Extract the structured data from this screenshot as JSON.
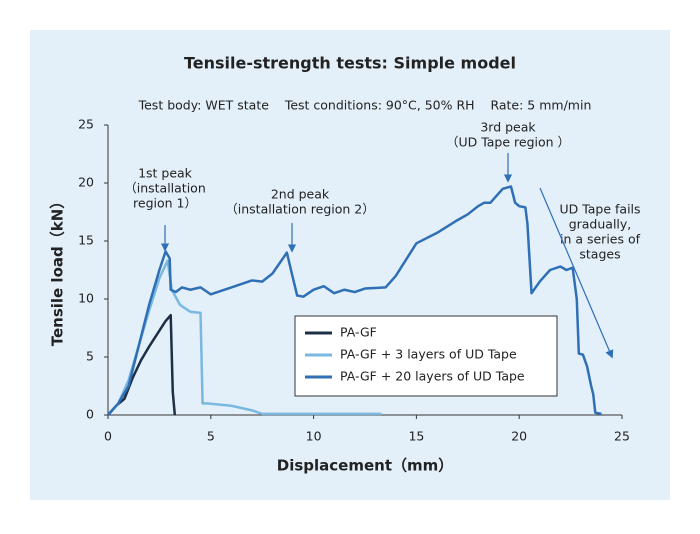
{
  "chart_data": {
    "type": "line",
    "title": "Tensile-strength tests: Simple model",
    "subtitle": "Test body: WET state    Test conditions: 90°C, 50% RH    Rate: 5 mm/min",
    "x_label": "Displacement（mm）",
    "y_label": "Tensile load（kN）",
    "xlim": [
      0,
      25
    ],
    "xticks": [
      0,
      5,
      10,
      15,
      20,
      25
    ],
    "ylim": [
      0,
      25
    ],
    "yticks": [
      0,
      5,
      10,
      15,
      20,
      25
    ],
    "legend": "bottom-center",
    "annotations": [
      {
        "lines": [
          "1st peak",
          "（installation",
          "region 1）"
        ]
      },
      {
        "lines": [
          "2nd peak",
          "（installation region 2）"
        ]
      },
      {
        "lines": [
          "3rd peak",
          "（UD Tape region ）"
        ]
      },
      {
        "lines": [
          "UD Tape fails",
          "gradually,",
          "in a series of",
          "stages"
        ]
      }
    ],
    "series": [
      {
        "name": "PA-GF",
        "color": "#1c2f45",
        "x": [
          0,
          0.4,
          0.8,
          1.2,
          1.6,
          2.0,
          2.4,
          2.8,
          3.05,
          3.15,
          3.25
        ],
        "values": [
          0,
          0.8,
          1.4,
          3.2,
          4.7,
          5.9,
          7.0,
          8.1,
          8.6,
          2,
          0
        ]
      },
      {
        "name": "PA-GF + 3 layers of UD Tape",
        "color": "#7ab8e0",
        "x": [
          0,
          0.5,
          1,
          1.5,
          2,
          2.5,
          2.9,
          3.1,
          3.5,
          4,
          4.5,
          4.6,
          4.8,
          6,
          7,
          7.5,
          9,
          13.3
        ],
        "values": [
          0,
          1,
          3,
          6,
          9,
          11.8,
          13.3,
          10.8,
          9.5,
          8.9,
          8.8,
          1,
          1,
          0.8,
          0.4,
          0.1,
          0.1,
          0.1
        ]
      },
      {
        "name": "PA-GF + 20 layers of UD Tape",
        "color": "#2f6fb5",
        "x": [
          0,
          0.5,
          1,
          1.5,
          2,
          2.5,
          2.8,
          3.0,
          3.05,
          3.3,
          3.6,
          4,
          4.5,
          5,
          6,
          7,
          7.5,
          8,
          8.7,
          8.9,
          9.2,
          9.5,
          10,
          10.5,
          11,
          11.5,
          12,
          12.5,
          13.5,
          14,
          15,
          16,
          17,
          17.5,
          18,
          18.3,
          18.6,
          19.2,
          19.6,
          19.8,
          20,
          20.3,
          20.4,
          20.6,
          21,
          21.5,
          22,
          22.3,
          22.6,
          22.8,
          22.9,
          23.1,
          23.3,
          23.5,
          23.6,
          23.7,
          24
        ],
        "values": [
          0,
          1,
          2.5,
          6,
          9.5,
          12.5,
          14.1,
          13.5,
          10.8,
          10.6,
          11,
          10.8,
          11,
          10.4,
          11,
          11.6,
          11.5,
          12.2,
          14,
          12.5,
          10.3,
          10.2,
          10.8,
          11.1,
          10.5,
          10.8,
          10.6,
          10.9,
          11,
          12,
          14.8,
          15.7,
          16.8,
          17.3,
          18,
          18.3,
          18.3,
          19.5,
          19.7,
          18.3,
          18,
          17.9,
          16.5,
          10.5,
          11.5,
          12.5,
          12.8,
          12.5,
          12.7,
          10,
          5.3,
          5.2,
          4.2,
          2.5,
          1.8,
          0.2,
          0.1
        ]
      }
    ]
  }
}
